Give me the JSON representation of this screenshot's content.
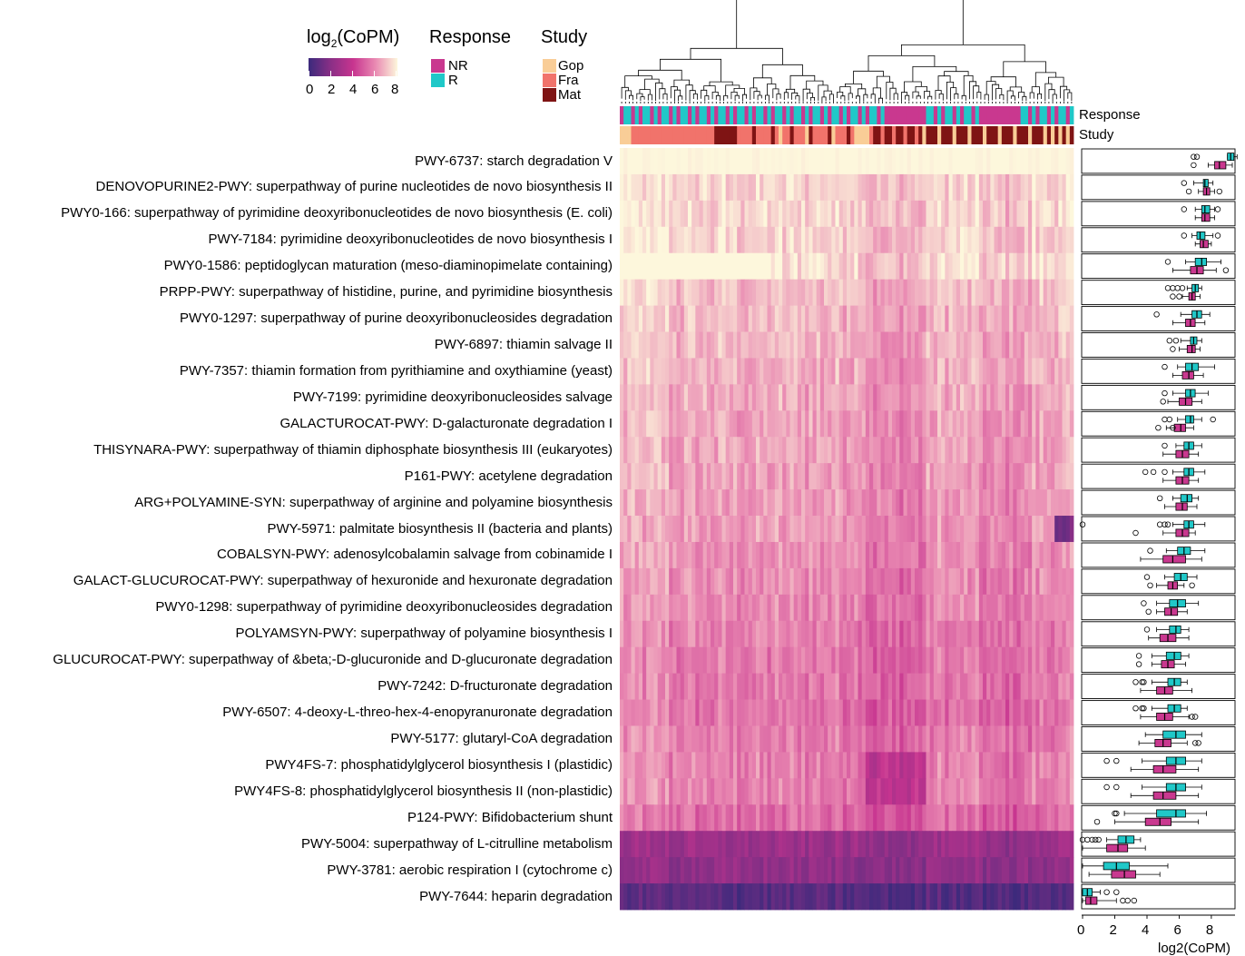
{
  "legend": {
    "color_title": "log2(CoPM)",
    "color_title_base": "log",
    "color_title_sub": "2",
    "color_title_rest": "(CoPM)",
    "color_ticks": [
      "0",
      "2",
      "4",
      "6",
      "8"
    ],
    "response_title": "Response",
    "response_items": [
      {
        "label": "NR",
        "color": "#c9388f"
      },
      {
        "label": "R",
        "color": "#20c8c8"
      }
    ],
    "study_title": "Study",
    "study_items": [
      {
        "label": "Gop",
        "color": "#f9cd97"
      },
      {
        "label": "Fra",
        "color": "#f1736b"
      },
      {
        "label": "Mat",
        "color": "#7f1414"
      }
    ]
  },
  "annotation_labels": {
    "response": "Response",
    "study": "Study"
  },
  "colors": {
    "low": "#3b2a7c",
    "mid_low": "#8a2f86",
    "mid": "#c7348f",
    "mid_high": "#e989b2",
    "high": "#fdf7dc",
    "R": "#20c8c8",
    "NR": "#c9388f"
  },
  "chart_data": [
    {
      "type": "heatmap",
      "columns_description": "samples clustered by dendrogram",
      "color_scale_range": [
        0,
        8
      ],
      "rows": [
        "PWY-6737: starch degradation V",
        "DENOVOPURINE2-PWY: superpathway of purine nucleotides de novo biosynthesis II",
        "PWY0-166: superpathway of pyrimidine deoxyribonucleotides de novo biosynthesis (E. coli)",
        "PWY-7184: pyrimidine deoxyribonucleotides de novo biosynthesis I",
        "PWY0-1586: peptidoglycan maturation (meso-diaminopimelate containing)",
        "PRPP-PWY: superpathway of histidine, purine, and pyrimidine biosynthesis",
        "PWY0-1297: superpathway of purine deoxyribonucleosides degradation",
        "PWY-6897: thiamin salvage II",
        "PWY-7357: thiamin formation from pyrithiamine and oxythiamine (yeast)",
        "PWY-7199: pyrimidine deoxyribonucleosides salvage",
        "GALACTUROCAT-PWY: D-galacturonate degradation I",
        "THISYNARA-PWY: superpathway of thiamin diphosphate biosynthesis III (eukaryotes)",
        "P161-PWY: acetylene degradation",
        "ARG+POLYAMINE-SYN: superpathway of arginine and polyamine biosynthesis",
        "PWY-5971: palmitate biosynthesis II (bacteria and plants)",
        "COBALSYN-PWY: adenosylcobalamin salvage from cobinamide I",
        "GALACT-GLUCUROCAT-PWY: superpathway of hexuronide and hexuronate degradation",
        "PWY0-1298: superpathway of pyrimidine deoxyribonucleosides degradation",
        "POLYAMSYN-PWY: superpathway of polyamine biosynthesis I",
        "GLUCUROCAT-PWY: superpathway of &beta;-D-glucuronide and D-glucuronate degradation",
        "PWY-7242: D-fructuronate degradation",
        "PWY-6507: 4-deoxy-L-threo-hex-4-enopyranuronate degradation",
        "PWY-5177: glutaryl-CoA degradation",
        "PWY4FS-7: phosphatidylglycerol biosynthesis I (plastidic)",
        "PWY4FS-8: phosphatidylglycerol biosynthesis II (non-plastidic)",
        "P124-PWY: Bifidobacterium shunt",
        "PWY-5004: superpathway of L-citrulline metabolism",
        "PWY-3781: aerobic respiration I (cytochrome c)",
        "PWY-7644: heparin degradation"
      ],
      "row_mean_values": [
        8.4,
        7.4,
        7.4,
        7.3,
        7.6,
        7.0,
        6.9,
        6.8,
        6.7,
        6.6,
        6.5,
        6.5,
        6.4,
        6.3,
        6.3,
        6.1,
        6.0,
        5.9,
        5.7,
        5.6,
        5.6,
        5.5,
        5.7,
        5.8,
        5.8,
        5.3,
        2.5,
        2.2,
        0.7
      ]
    },
    {
      "type": "box",
      "xlabel": "log2(CoPM)",
      "xlim": [
        0,
        9.3
      ],
      "x_ticks": [
        0,
        2,
        4,
        6,
        8
      ],
      "groups": [
        "R",
        "NR"
      ],
      "series": [
        {
          "name": "R",
          "boxes": [
            {
              "min": 9.0,
              "q1": 9.0,
              "median": 9.2,
              "q3": 9.4,
              "max": 9.6,
              "outliers": [
                6.9,
                7.1
              ]
            },
            {
              "min": 6.9,
              "q1": 7.5,
              "median": 7.6,
              "q3": 7.8,
              "max": 8.1,
              "outliers": [
                6.3
              ]
            },
            {
              "min": 7.0,
              "q1": 7.4,
              "median": 7.6,
              "q3": 7.9,
              "max": 8.2,
              "outliers": [
                6.3,
                8.4
              ]
            },
            {
              "min": 6.8,
              "q1": 7.1,
              "median": 7.3,
              "q3": 7.6,
              "max": 8.1,
              "outliers": [
                6.3,
                8.4
              ]
            },
            {
              "min": 6.4,
              "q1": 7.0,
              "median": 7.4,
              "q3": 7.7,
              "max": 8.6,
              "outliers": [
                5.3
              ]
            },
            {
              "min": 6.5,
              "q1": 6.8,
              "median": 7.0,
              "q3": 7.2,
              "max": 7.4,
              "outliers": [
                5.3,
                5.6,
                5.9,
                6.2
              ]
            },
            {
              "min": 6.1,
              "q1": 6.8,
              "median": 7.1,
              "q3": 7.4,
              "max": 7.9,
              "outliers": [
                4.6
              ]
            },
            {
              "min": 6.1,
              "q1": 6.7,
              "median": 6.9,
              "q3": 7.1,
              "max": 7.4,
              "outliers": [
                5.4,
                5.8
              ]
            },
            {
              "min": 5.9,
              "q1": 6.4,
              "median": 6.8,
              "q3": 7.2,
              "max": 8.2,
              "outliers": [
                5.1
              ]
            },
            {
              "min": 5.6,
              "q1": 6.4,
              "median": 6.7,
              "q3": 7.0,
              "max": 7.8,
              "outliers": [
                5.1
              ]
            },
            {
              "min": 5.9,
              "q1": 6.4,
              "median": 6.7,
              "q3": 6.9,
              "max": 7.4,
              "outliers": [
                5.1,
                5.4,
                8.1
              ]
            },
            {
              "min": 5.8,
              "q1": 6.3,
              "median": 6.6,
              "q3": 6.9,
              "max": 7.4,
              "outliers": [
                5.1
              ]
            },
            {
              "min": 5.6,
              "q1": 6.3,
              "median": 6.6,
              "q3": 6.9,
              "max": 7.6,
              "outliers": [
                3.9,
                4.4,
                5.1
              ]
            },
            {
              "min": 5.6,
              "q1": 6.1,
              "median": 6.5,
              "q3": 6.8,
              "max": 7.2,
              "outliers": [
                4.8
              ]
            },
            {
              "min": 5.6,
              "q1": 6.3,
              "median": 6.6,
              "q3": 6.9,
              "max": 7.6,
              "outliers": [
                0.0,
                4.8,
                5.1,
                5.3
              ]
            },
            {
              "min": 5.2,
              "q1": 5.9,
              "median": 6.3,
              "q3": 6.7,
              "max": 7.6,
              "outliers": [
                4.2
              ]
            },
            {
              "min": 5.1,
              "q1": 5.7,
              "median": 6.1,
              "q3": 6.5,
              "max": 7.1,
              "outliers": [
                4.0
              ]
            },
            {
              "min": 4.6,
              "q1": 5.4,
              "median": 5.9,
              "q3": 6.4,
              "max": 7.2,
              "outliers": [
                3.8
              ]
            },
            {
              "min": 4.6,
              "q1": 5.4,
              "median": 5.8,
              "q3": 6.1,
              "max": 6.6,
              "outliers": [
                4.0
              ]
            },
            {
              "min": 4.3,
              "q1": 5.2,
              "median": 5.7,
              "q3": 6.1,
              "max": 6.6,
              "outliers": [
                3.5
              ]
            },
            {
              "min": 4.3,
              "q1": 5.3,
              "median": 5.7,
              "q3": 6.1,
              "max": 6.5,
              "outliers": [
                3.3,
                3.7,
                3.8
              ]
            },
            {
              "min": 4.3,
              "q1": 5.3,
              "median": 5.7,
              "q3": 6.1,
              "max": 6.5,
              "outliers": [
                3.3,
                3.7,
                3.8
              ]
            },
            {
              "min": 3.9,
              "q1": 5.0,
              "median": 5.8,
              "q3": 6.4,
              "max": 7.4,
              "outliers": []
            },
            {
              "min": 3.7,
              "q1": 5.2,
              "median": 5.8,
              "q3": 6.4,
              "max": 7.4,
              "outliers": [
                1.5,
                2.1
              ]
            },
            {
              "min": 3.7,
              "q1": 5.2,
              "median": 5.8,
              "q3": 6.4,
              "max": 7.4,
              "outliers": [
                1.5,
                2.1
              ]
            },
            {
              "min": 2.6,
              "q1": 4.6,
              "median": 5.8,
              "q3": 6.4,
              "max": 7.7,
              "outliers": [
                2.0,
                2.1
              ]
            },
            {
              "min": 1.5,
              "q1": 2.2,
              "median": 2.7,
              "q3": 3.2,
              "max": 3.6,
              "outliers": [
                0.0,
                0.3,
                0.6,
                0.8,
                1.0
              ]
            },
            {
              "min": 0.0,
              "q1": 1.3,
              "median": 2.1,
              "q3": 2.9,
              "max": 5.3,
              "outliers": []
            },
            {
              "min": 0.0,
              "q1": 0.0,
              "median": 0.3,
              "q3": 0.6,
              "max": 1.1,
              "outliers": [
                1.5,
                2.1
              ]
            }
          ]
        },
        {
          "name": "NR",
          "boxes": [
            {
              "min": 7.8,
              "q1": 8.2,
              "median": 8.5,
              "q3": 8.9,
              "max": 9.3,
              "outliers": [
                6.9
              ]
            },
            {
              "min": 7.2,
              "q1": 7.5,
              "median": 7.7,
              "q3": 7.9,
              "max": 8.2,
              "outliers": [
                6.6,
                8.5
              ]
            },
            {
              "min": 7.0,
              "q1": 7.4,
              "median": 7.6,
              "q3": 7.9,
              "max": 8.2,
              "outliers": []
            },
            {
              "min": 7.0,
              "q1": 7.3,
              "median": 7.5,
              "q3": 7.8,
              "max": 8.0,
              "outliers": []
            },
            {
              "min": 5.6,
              "q1": 6.7,
              "median": 7.1,
              "q3": 7.5,
              "max": 8.3,
              "outliers": [
                8.9
              ]
            },
            {
              "min": 6.2,
              "q1": 6.6,
              "median": 6.8,
              "q3": 7.0,
              "max": 7.3,
              "outliers": [
                5.6,
                6.0
              ]
            },
            {
              "min": 5.6,
              "q1": 6.4,
              "median": 6.7,
              "q3": 7.0,
              "max": 7.6,
              "outliers": []
            },
            {
              "min": 6.0,
              "q1": 6.5,
              "median": 6.8,
              "q3": 7.0,
              "max": 7.3,
              "outliers": [
                5.6
              ]
            },
            {
              "min": 5.6,
              "q1": 6.2,
              "median": 6.6,
              "q3": 6.9,
              "max": 7.5,
              "outliers": []
            },
            {
              "min": 5.3,
              "q1": 6.0,
              "median": 6.4,
              "q3": 6.8,
              "max": 7.4,
              "outliers": [
                5.0
              ]
            },
            {
              "min": 5.2,
              "q1": 5.7,
              "median": 6.1,
              "q3": 6.4,
              "max": 6.9,
              "outliers": [
                4.7,
                5.6
              ]
            },
            {
              "min": 5.0,
              "q1": 5.8,
              "median": 6.2,
              "q3": 6.6,
              "max": 7.2,
              "outliers": []
            },
            {
              "min": 5.0,
              "q1": 5.8,
              "median": 6.2,
              "q3": 6.6,
              "max": 7.2,
              "outliers": []
            },
            {
              "min": 5.1,
              "q1": 5.8,
              "median": 6.2,
              "q3": 6.5,
              "max": 7.1,
              "outliers": []
            },
            {
              "min": 5.0,
              "q1": 5.8,
              "median": 6.2,
              "q3": 6.6,
              "max": 7.0,
              "outliers": [
                3.3
              ]
            },
            {
              "min": 3.6,
              "q1": 5.0,
              "median": 5.6,
              "q3": 6.4,
              "max": 7.4,
              "outliers": []
            },
            {
              "min": 4.6,
              "q1": 5.3,
              "median": 5.6,
              "q3": 5.9,
              "max": 6.3,
              "outliers": [
                4.2,
                6.8
              ]
            },
            {
              "min": 4.6,
              "q1": 5.1,
              "median": 5.5,
              "q3": 5.9,
              "max": 6.5,
              "outliers": [
                4.1
              ]
            },
            {
              "min": 4.1,
              "q1": 4.8,
              "median": 5.3,
              "q3": 5.8,
              "max": 6.6,
              "outliers": []
            },
            {
              "min": 4.3,
              "q1": 4.9,
              "median": 5.3,
              "q3": 5.7,
              "max": 6.4,
              "outliers": [
                3.5
              ]
            },
            {
              "min": 3.6,
              "q1": 4.6,
              "median": 5.1,
              "q3": 5.6,
              "max": 6.8,
              "outliers": []
            },
            {
              "min": 3.6,
              "q1": 4.6,
              "median": 5.1,
              "q3": 5.6,
              "max": 6.6,
              "outliers": [
                6.8,
                7.0
              ]
            },
            {
              "min": 3.5,
              "q1": 4.5,
              "median": 5.0,
              "q3": 5.5,
              "max": 6.5,
              "outliers": [
                7.0,
                7.2
              ]
            },
            {
              "min": 3.0,
              "q1": 4.4,
              "median": 5.0,
              "q3": 5.8,
              "max": 7.2,
              "outliers": []
            },
            {
              "min": 3.0,
              "q1": 4.4,
              "median": 5.0,
              "q3": 5.8,
              "max": 7.2,
              "outliers": []
            },
            {
              "min": 2.0,
              "q1": 3.9,
              "median": 4.8,
              "q3": 5.5,
              "max": 7.2,
              "outliers": [
                0.9
              ]
            },
            {
              "min": 0.0,
              "q1": 1.5,
              "median": 2.2,
              "q3": 2.8,
              "max": 3.9,
              "outliers": []
            },
            {
              "min": 0.4,
              "q1": 1.8,
              "median": 2.6,
              "q3": 3.3,
              "max": 4.8,
              "outliers": []
            },
            {
              "min": 0.0,
              "q1": 0.2,
              "median": 0.5,
              "q3": 0.9,
              "max": 2.1,
              "outliers": [
                2.5,
                2.8,
                3.2
              ]
            }
          ]
        }
      ]
    }
  ]
}
